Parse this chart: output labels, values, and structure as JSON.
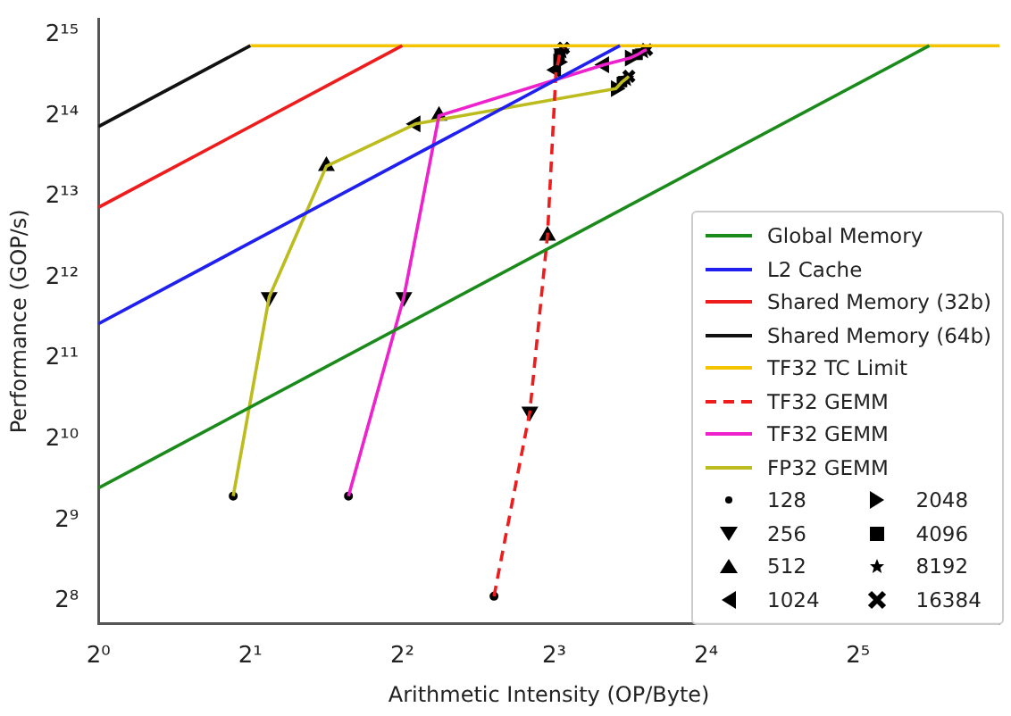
{
  "chart_data": {
    "type": "line",
    "xlabel": "Arithmetic Intensity (OP/Byte)",
    "ylabel": "Performance (GOP/s)",
    "log": "xy",
    "grid": false,
    "legend": "right",
    "xlim": [
      1,
      61
    ],
    "ylim": [
      212,
      37500
    ],
    "xticks": [
      {
        "value": 1,
        "label": "2⁰"
      },
      {
        "value": 2,
        "label": "2¹"
      },
      {
        "value": 4,
        "label": "2²"
      },
      {
        "value": 8,
        "label": "2³"
      },
      {
        "value": 16,
        "label": "2⁴"
      },
      {
        "value": 32,
        "label": "2⁵"
      }
    ],
    "yticks": [
      {
        "value": 256,
        "label": "2⁸"
      },
      {
        "value": 512,
        "label": "2⁹"
      },
      {
        "value": 1024,
        "label": "2¹⁰"
      },
      {
        "value": 2048,
        "label": "2¹¹"
      },
      {
        "value": 4096,
        "label": "2¹²"
      },
      {
        "value": 8192,
        "label": "2¹³"
      },
      {
        "value": 16384,
        "label": "2¹⁴"
      },
      {
        "value": 32768,
        "label": "2¹⁵"
      }
    ],
    "series": [
      {
        "name": "Global Memory",
        "type": "line",
        "color": "#1a8a1a",
        "marker": "none",
        "line_style": "solid",
        "x": [
          1,
          44.3
        ],
        "values": [
          675,
          29900
        ]
      },
      {
        "name": "L2 Cache",
        "type": "line",
        "color": "#1f1fef",
        "marker": "none",
        "line_style": "solid",
        "x": [
          1,
          10.8
        ],
        "values": [
          2760,
          29900
        ]
      },
      {
        "name": "Shared Memory (32b)",
        "type": "line",
        "color": "#ee1c1c",
        "marker": "none",
        "line_style": "solid",
        "x": [
          1,
          4
        ],
        "values": [
          7480,
          29900
        ]
      },
      {
        "name": "Shared Memory (64b)",
        "type": "line",
        "color": "#111111",
        "marker": "none",
        "line_style": "solid",
        "x": [
          1,
          2
        ],
        "values": [
          14950,
          29900
        ]
      },
      {
        "name": "TF32 TC Limit",
        "type": "line",
        "color": "#f5c400",
        "marker": "none",
        "line_style": "solid",
        "x": [
          2,
          61
        ],
        "values": [
          29900,
          29900
        ]
      },
      {
        "name": "TF32 GEMM",
        "type": "line",
        "color": "#ee1c1c",
        "marker": "none",
        "line_style": "dashed",
        "x": [
          6.08,
          7.16,
          7.76,
          8.07,
          8.15,
          8.2,
          8.27,
          8.35
        ],
        "values": [
          267,
          1300,
          5870,
          24300,
          26000,
          27700,
          28500,
          29300
        ]
      },
      {
        "name": "TF32 GEMM",
        "type": "line",
        "color": "#ee22cc",
        "marker": "none",
        "line_style": "solid",
        "x": [
          3.13,
          4.03,
          4.73,
          10.05,
          11.3,
          11.7,
          12.0,
          12.2
        ],
        "values": [
          630,
          3470,
          16400,
          25400,
          26900,
          27700,
          28500,
          28900
        ]
      },
      {
        "name": "FP32 GEMM",
        "type": "line",
        "color": "#bcbc1e",
        "marker": "none",
        "line_style": "solid",
        "x": [
          1.85,
          2.18,
          2.83,
          4.25,
          10.6,
          10.9,
          11.1,
          11.25
        ],
        "values": [
          630,
          3470,
          10650,
          15300,
          20700,
          21900,
          22500,
          23000
        ]
      },
      {
        "name": "128",
        "type": "scatter",
        "color": "#000000",
        "marker": "circle",
        "x": [
          6.08,
          3.13,
          1.85
        ],
        "values": [
          267,
          630,
          630
        ]
      },
      {
        "name": "256",
        "type": "scatter",
        "color": "#000000",
        "marker": "triangle-down",
        "x": [
          7.16,
          4.03,
          2.18
        ],
        "values": [
          1300,
          3470,
          3470
        ]
      },
      {
        "name": "512",
        "type": "scatter",
        "color": "#000000",
        "marker": "triangle",
        "x": [
          7.76,
          4.73,
          2.83
        ],
        "values": [
          5870,
          16400,
          10650
        ]
      },
      {
        "name": "1024",
        "type": "scatter",
        "color": "#000000",
        "marker": "triangle-left",
        "x": [
          8.07,
          10.05,
          4.25
        ],
        "values": [
          24300,
          25400,
          15300
        ]
      },
      {
        "name": "2048",
        "type": "scatter",
        "color": "#000000",
        "marker": "triangle-right",
        "x": [
          8.15,
          11.3,
          10.6
        ],
        "values": [
          26000,
          26900,
          20700
        ]
      },
      {
        "name": "4096",
        "type": "scatter",
        "color": "#000000",
        "marker": "square",
        "x": [
          8.2,
          11.7,
          10.9
        ],
        "values": [
          27700,
          27700,
          21900
        ]
      },
      {
        "name": "8192",
        "type": "scatter",
        "color": "#000000",
        "marker": "star",
        "x": [
          8.27,
          12.0,
          11.1
        ],
        "values": [
          28500,
          28500,
          22500
        ]
      },
      {
        "name": "16384",
        "type": "scatter",
        "color": "#000000",
        "marker": "cross",
        "x": [
          8.35,
          12.2,
          11.25
        ],
        "values": [
          29300,
          28900,
          23000
        ]
      }
    ]
  }
}
